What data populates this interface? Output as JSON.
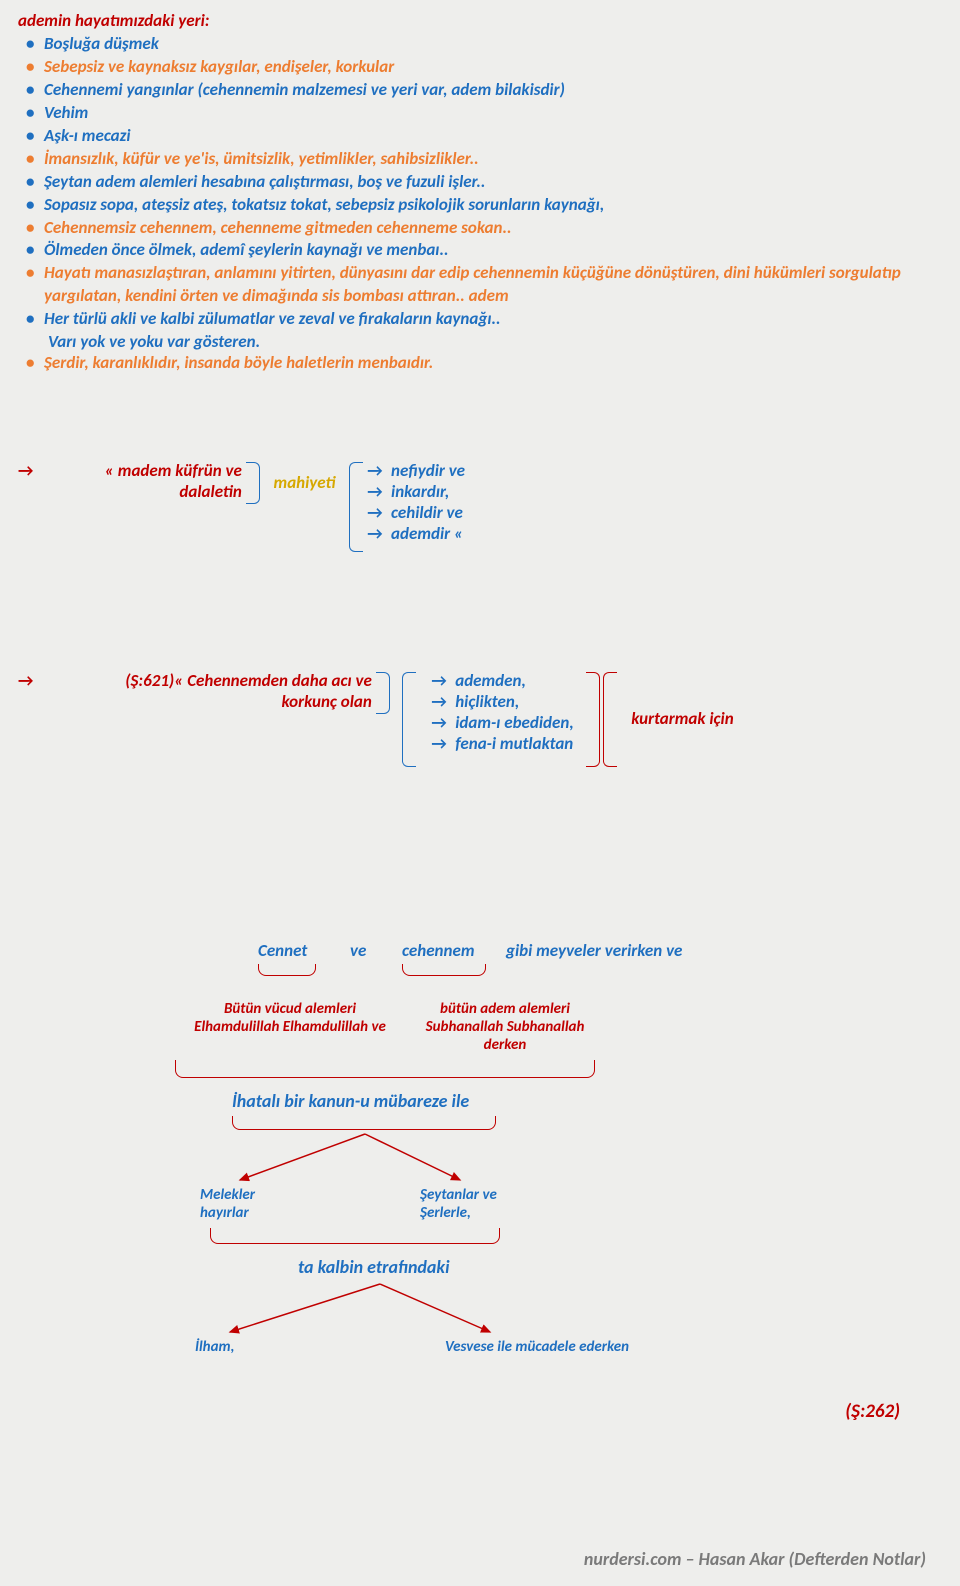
{
  "title": "ademin hayatımızdaki yeri:",
  "bullets": [
    {
      "text": "Boşluğa düşmek",
      "cls": "blue",
      "bcls": "blue-bullet"
    },
    {
      "text": "Sebepsiz ve kaynaksız kaygılar, endişeler, korkular",
      "cls": "orange",
      "bcls": "orange-bullet"
    },
    {
      "text": "Cehennemi yangınlar (cehennemin malzemesi ve yeri var, adem bilakisdir)",
      "cls": "blue",
      "bcls": "blue-bullet"
    },
    {
      "text": "Vehim",
      "cls": "blue",
      "bcls": "blue-bullet"
    },
    {
      "text": "Aşk-ı mecazi",
      "cls": "blue",
      "bcls": "blue-bullet"
    },
    {
      "text": "İmansızlık, küfür ve ye'is, ümitsizlik, yetimlikler, sahibsizlikler..",
      "cls": "orange",
      "bcls": "orange-bullet"
    },
    {
      "text": "Şeytan adem alemleri hesabına çalıştırması, boş ve fuzuli işler..",
      "cls": "blue",
      "bcls": "blue-bullet"
    },
    {
      "text": "Sopasız sopa, ateşsiz ateş, tokatsız tokat, sebepsiz psikolojik sorunların kaynağı,",
      "cls": "blue",
      "bcls": "blue-bullet"
    },
    {
      "text": "Cehennemsiz cehennem, cehenneme gitmeden cehenneme sokan..",
      "cls": "orange",
      "bcls": "orange-bullet"
    },
    {
      "text": "Ölmeden önce ölmek, ademî şeylerin kaynağı ve menbaı..",
      "cls": "blue",
      "bcls": "blue-bullet"
    },
    {
      "text": "Hayatı manasızlaştıran, anlamını yitirten, dünyasını dar edip cehennemin küçüğüne dönüştüren, dini hükümleri sorgulatıp yargılatan, kendini örten ve dimağında sis bombası attıran.. adem",
      "cls": "orange",
      "bcls": "orange-bullet"
    },
    {
      "text": "Her türlü akli ve kalbi zülumatlar ve zeval ve firakaların kaynağı..",
      "cls": "blue",
      "bcls": "blue-bullet",
      "cont": "Varı yok ve yoku var gösteren."
    },
    {
      "text": "Şerdir, karanlıklıdır, insanda böyle haletlerin menbaıdır.",
      "cls": "orange",
      "bcls": "orange-bullet"
    }
  ],
  "s1": {
    "left1": "« madem küfrün ve",
    "left2": "dalaletin",
    "mid": "mahiyeti",
    "items": [
      "nefiydir ve",
      "inkardır,",
      "cehildir ve",
      "ademdir «"
    ]
  },
  "s2": {
    "left1": "(Ş:621)« Cehennemden daha acı ve",
    "left2": "korkunç olan",
    "items": [
      "ademden,",
      "hiçlikten,",
      "idam-ı ebediden,",
      "fena-i mutlaktan"
    ],
    "result": "kurtarmak için"
  },
  "diagram": {
    "top": {
      "cennet": "Cennet",
      "ve": "ve",
      "cehennem": "cehennem",
      "rest": "gibi meyveler verirken ve"
    },
    "left_desc1": "Bütün vücud alemleri",
    "left_desc2": "Elhamdulillah Elhamdulillah ve",
    "right_desc1": "bütün adem alemleri",
    "right_desc2": "Subhanallah Subhanallah",
    "right_desc3": "derken",
    "kanun": "İhatalı bir kanun-u mübareze ile",
    "melekler1": "Melekler",
    "melekler2": "hayırlar",
    "seytanlar1": "Şeytanlar ve",
    "seytanlar2": "Şerlerle,",
    "kalbin": "ta kalbin etrafındaki",
    "ilham": "İlham,",
    "vesvese": "Vesvese ile mücadele ederken"
  },
  "pageref": "(Ş:262)",
  "footer": "nurdersi.com – Hasan Akar (Defterden Notlar)",
  "colors": {
    "blue": "#1f6fc0",
    "orange": "#ed7d31",
    "red": "#c00000",
    "gold": "#d6a800",
    "bg": "#eeeeec"
  }
}
